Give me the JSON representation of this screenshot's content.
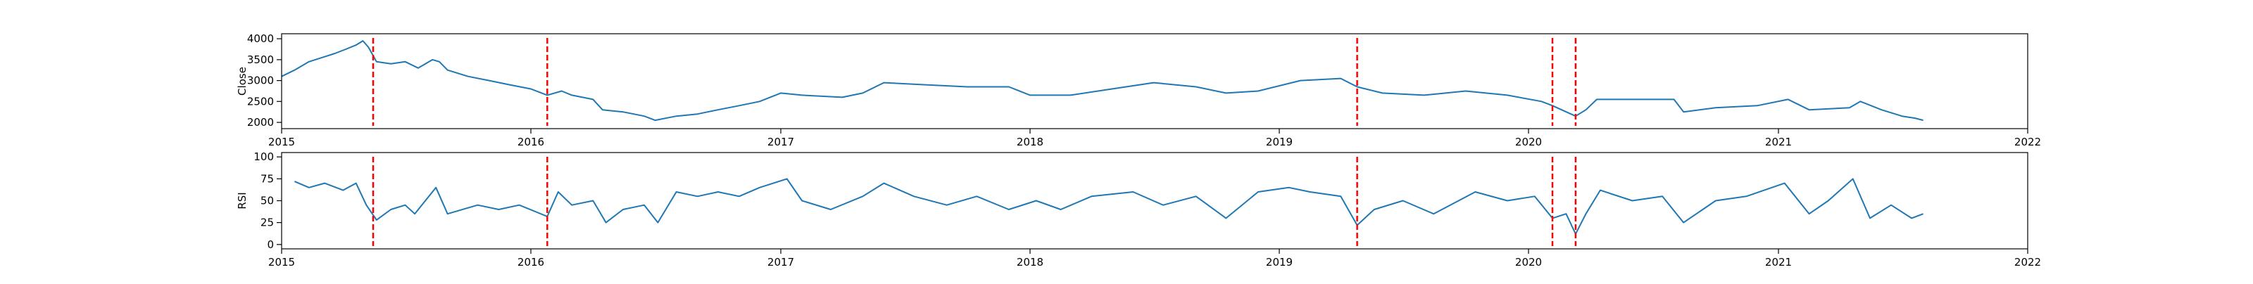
{
  "chart_data": [
    {
      "type": "line",
      "ylabel": "Close",
      "xlim": [
        "2015-01-01",
        "2022-01-01"
      ],
      "ylim": [
        1850,
        4120
      ],
      "yticks": [
        2000,
        2500,
        3000,
        3500,
        4000
      ],
      "xticks": [
        {
          "date": "2015-01-01",
          "label": "2015"
        },
        {
          "date": "2016-01-01",
          "label": "2016"
        },
        {
          "date": "2017-01-01",
          "label": "2017"
        },
        {
          "date": "2018-01-01",
          "label": "2018"
        },
        {
          "date": "2019-01-01",
          "label": "2019"
        },
        {
          "date": "2020-01-01",
          "label": "2020"
        },
        {
          "date": "2021-01-01",
          "label": "2021"
        },
        {
          "date": "2022-01-01",
          "label": "2022"
        }
      ],
      "grid": false,
      "line_color": "#1f77b4",
      "marker_color": "#ff0000",
      "event_dates": [
        "2015-05-15",
        "2016-01-25",
        "2019-04-25",
        "2020-02-05",
        "2020-03-10"
      ],
      "series": [
        {
          "values": [
            [
              "2015-01-01",
              3100
            ],
            [
              "2015-01-20",
              3250
            ],
            [
              "2015-02-10",
              3450
            ],
            [
              "2015-03-01",
              3550
            ],
            [
              "2015-03-20",
              3650
            ],
            [
              "2015-04-05",
              3750
            ],
            [
              "2015-04-20",
              3850
            ],
            [
              "2015-04-30",
              3950
            ],
            [
              "2015-05-08",
              3800
            ],
            [
              "2015-05-20",
              3450
            ],
            [
              "2015-06-10",
              3400
            ],
            [
              "2015-07-01",
              3450
            ],
            [
              "2015-07-20",
              3300
            ],
            [
              "2015-08-10",
              3500
            ],
            [
              "2015-08-20",
              3450
            ],
            [
              "2015-09-01",
              3250
            ],
            [
              "2015-10-01",
              3100
            ],
            [
              "2015-11-01",
              3000
            ],
            [
              "2015-12-01",
              2900
            ],
            [
              "2016-01-01",
              2800
            ],
            [
              "2016-01-25",
              2650
            ],
            [
              "2016-02-15",
              2750
            ],
            [
              "2016-03-01",
              2650
            ],
            [
              "2016-04-01",
              2550
            ],
            [
              "2016-04-15",
              2300
            ],
            [
              "2016-05-15",
              2250
            ],
            [
              "2016-06-15",
              2150
            ],
            [
              "2016-07-01",
              2050
            ],
            [
              "2016-08-01",
              2150
            ],
            [
              "2016-09-01",
              2200
            ],
            [
              "2016-10-01",
              2300
            ],
            [
              "2016-11-01",
              2400
            ],
            [
              "2016-12-01",
              2500
            ],
            [
              "2017-01-01",
              2700
            ],
            [
              "2017-02-01",
              2650
            ],
            [
              "2017-04-01",
              2600
            ],
            [
              "2017-05-01",
              2700
            ],
            [
              "2017-06-01",
              2950
            ],
            [
              "2017-08-01",
              2900
            ],
            [
              "2017-10-01",
              2850
            ],
            [
              "2017-12-01",
              2850
            ],
            [
              "2018-01-01",
              2650
            ],
            [
              "2018-03-01",
              2650
            ],
            [
              "2018-05-01",
              2800
            ],
            [
              "2018-07-01",
              2950
            ],
            [
              "2018-09-01",
              2850
            ],
            [
              "2018-10-15",
              2700
            ],
            [
              "2018-12-01",
              2750
            ],
            [
              "2019-02-01",
              3000
            ],
            [
              "2019-04-01",
              3050
            ],
            [
              "2019-04-25",
              2850
            ],
            [
              "2019-06-01",
              2700
            ],
            [
              "2019-08-01",
              2650
            ],
            [
              "2019-10-01",
              2750
            ],
            [
              "2019-12-01",
              2650
            ],
            [
              "2020-01-20",
              2500
            ],
            [
              "2020-02-05",
              2400
            ],
            [
              "2020-03-10",
              2150
            ],
            [
              "2020-03-25",
              2300
            ],
            [
              "2020-04-10",
              2550
            ],
            [
              "2020-06-01",
              2550
            ],
            [
              "2020-08-01",
              2550
            ],
            [
              "2020-08-15",
              2250
            ],
            [
              "2020-10-01",
              2350
            ],
            [
              "2020-12-01",
              2400
            ],
            [
              "2021-01-15",
              2550
            ],
            [
              "2021-02-15",
              2300
            ],
            [
              "2021-04-15",
              2350
            ],
            [
              "2021-05-01",
              2500
            ],
            [
              "2021-06-01",
              2300
            ],
            [
              "2021-07-01",
              2150
            ],
            [
              "2021-07-20",
              2100
            ],
            [
              "2021-08-01",
              2050
            ]
          ]
        }
      ]
    },
    {
      "type": "line",
      "ylabel": "RSI",
      "xlim": [
        "2015-01-01",
        "2022-01-01"
      ],
      "ylim": [
        -5,
        105
      ],
      "yticks": [
        0,
        25,
        50,
        75,
        100
      ],
      "xticks": [
        {
          "date": "2015-01-01",
          "label": "2015"
        },
        {
          "date": "2016-01-01",
          "label": "2016"
        },
        {
          "date": "2017-01-01",
          "label": "2017"
        },
        {
          "date": "2018-01-01",
          "label": "2018"
        },
        {
          "date": "2019-01-01",
          "label": "2019"
        },
        {
          "date": "2020-01-01",
          "label": "2020"
        },
        {
          "date": "2021-01-01",
          "label": "2021"
        },
        {
          "date": "2022-01-01",
          "label": "2022"
        }
      ],
      "grid": false,
      "line_color": "#1f77b4",
      "marker_color": "#ff0000",
      "event_dates": [
        "2015-05-15",
        "2016-01-25",
        "2019-04-25",
        "2020-02-05",
        "2020-03-10"
      ],
      "series": [
        {
          "values": [
            [
              "2015-01-20",
              72
            ],
            [
              "2015-02-10",
              65
            ],
            [
              "2015-03-05",
              70
            ],
            [
              "2015-04-01",
              62
            ],
            [
              "2015-04-20",
              70
            ],
            [
              "2015-05-05",
              45
            ],
            [
              "2015-05-20",
              28
            ],
            [
              "2015-06-10",
              40
            ],
            [
              "2015-07-01",
              45
            ],
            [
              "2015-07-15",
              35
            ],
            [
              "2015-08-15",
              65
            ],
            [
              "2015-09-01",
              35
            ],
            [
              "2015-10-15",
              45
            ],
            [
              "2015-11-15",
              40
            ],
            [
              "2015-12-15",
              45
            ],
            [
              "2016-01-25",
              32
            ],
            [
              "2016-02-10",
              60
            ],
            [
              "2016-03-01",
              45
            ],
            [
              "2016-04-01",
              50
            ],
            [
              "2016-04-20",
              25
            ],
            [
              "2016-05-15",
              40
            ],
            [
              "2016-06-15",
              45
            ],
            [
              "2016-07-05",
              25
            ],
            [
              "2016-08-01",
              60
            ],
            [
              "2016-09-01",
              55
            ],
            [
              "2016-10-01",
              60
            ],
            [
              "2016-11-01",
              55
            ],
            [
              "2016-12-01",
              65
            ],
            [
              "2017-01-10",
              75
            ],
            [
              "2017-02-01",
              50
            ],
            [
              "2017-03-15",
              40
            ],
            [
              "2017-05-01",
              55
            ],
            [
              "2017-06-01",
              70
            ],
            [
              "2017-07-15",
              55
            ],
            [
              "2017-09-01",
              45
            ],
            [
              "2017-10-15",
              55
            ],
            [
              "2017-12-01",
              40
            ],
            [
              "2018-01-10",
              50
            ],
            [
              "2018-02-15",
              40
            ],
            [
              "2018-04-01",
              55
            ],
            [
              "2018-06-01",
              60
            ],
            [
              "2018-07-15",
              45
            ],
            [
              "2018-09-01",
              55
            ],
            [
              "2018-10-15",
              30
            ],
            [
              "2018-12-01",
              60
            ],
            [
              "2019-01-15",
              65
            ],
            [
              "2019-02-15",
              60
            ],
            [
              "2019-04-01",
              55
            ],
            [
              "2019-04-25",
              22
            ],
            [
              "2019-05-20",
              40
            ],
            [
              "2019-07-01",
              50
            ],
            [
              "2019-08-15",
              35
            ],
            [
              "2019-10-15",
              60
            ],
            [
              "2019-12-01",
              50
            ],
            [
              "2020-01-10",
              55
            ],
            [
              "2020-02-05",
              30
            ],
            [
              "2020-02-25",
              35
            ],
            [
              "2020-03-10",
              12
            ],
            [
              "2020-03-25",
              35
            ],
            [
              "2020-04-15",
              62
            ],
            [
              "2020-06-01",
              50
            ],
            [
              "2020-07-15",
              55
            ],
            [
              "2020-08-15",
              25
            ],
            [
              "2020-10-01",
              50
            ],
            [
              "2020-11-15",
              55
            ],
            [
              "2021-01-10",
              70
            ],
            [
              "2021-02-15",
              35
            ],
            [
              "2021-03-15",
              50
            ],
            [
              "2021-04-20",
              75
            ],
            [
              "2021-05-15",
              30
            ],
            [
              "2021-06-15",
              45
            ],
            [
              "2021-07-15",
              30
            ],
            [
              "2021-08-01",
              35
            ]
          ]
        }
      ]
    }
  ]
}
